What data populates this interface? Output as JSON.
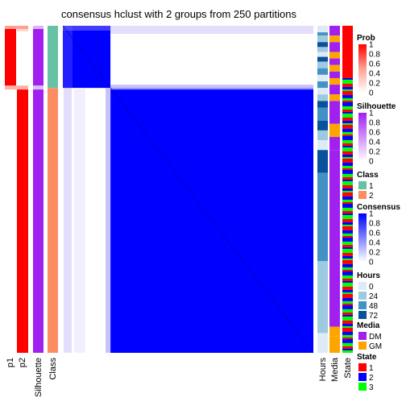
{
  "title": "consensus hclust with 2 groups from 250 partitions",
  "colors": {
    "prob_high": "#ff0000",
    "prob_mid": "#ff9f93",
    "prob_low": "#ffffff",
    "silhouette_high": "#a020f0",
    "silhouette_low": "#ffffff",
    "class_1": "#66c2a5",
    "class_2": "#fc8d62",
    "consensus_high": "#0000ff",
    "consensus_low": "#ffffff",
    "hours_0": "#deebf7",
    "hours_24": "#9ecae1",
    "hours_48": "#4292c6",
    "hours_72": "#08519c",
    "media_DM": "#a020f0",
    "media_GM": "#ffa500",
    "state_1": "#ff0000",
    "state_2": "#0000ff",
    "state_3": "#00ff00"
  },
  "row_labels": {
    "p1": "p1",
    "p2": "p2",
    "silhouette": "Silhouette",
    "class": "Class",
    "hours": "Hours",
    "media": "Media",
    "state": "State"
  },
  "legends": {
    "prob": {
      "title": "Prob",
      "ticks": [
        "1",
        "0.8",
        "0.6",
        "0.4",
        "0.2",
        "0"
      ]
    },
    "silhouette": {
      "title": "Silhouette",
      "ticks": [
        "1",
        "0.8",
        "0.6",
        "0.4",
        "0.2",
        "0"
      ]
    },
    "class": {
      "title": "Class",
      "items": [
        "1",
        "2"
      ]
    },
    "consensus": {
      "title": "Consensus",
      "ticks": [
        "1",
        "0.8",
        "0.6",
        "0.4",
        "0.2",
        "0"
      ]
    },
    "hours": {
      "title": "Hours",
      "items": [
        "0",
        "24",
        "48",
        "72"
      ]
    },
    "media": {
      "title": "Media",
      "items": [
        "DM",
        "GM"
      ]
    },
    "state": {
      "title": "State",
      "items": [
        "1",
        "2",
        "3"
      ]
    }
  },
  "chart_data": {
    "type": "heatmap",
    "title": "consensus hclust with 2 groups from 250 partitions",
    "groups": [
      {
        "class": "1",
        "share": 0.19,
        "p1": 1.0,
        "p2": 0.0,
        "silhouette": 1.0,
        "consensus_within": 1.0
      },
      {
        "class": "2",
        "share": 0.81,
        "p1": 0.0,
        "p2": 1.0,
        "silhouette": 1.0,
        "consensus_within": 1.0
      }
    ],
    "consensus_range": [
      0,
      1
    ],
    "prob_range": [
      0,
      1
    ],
    "silhouette_range": [
      0,
      1
    ],
    "annotation_tracks": [
      "p1",
      "p2",
      "Silhouette",
      "Class",
      "Hours",
      "Media",
      "State"
    ]
  }
}
